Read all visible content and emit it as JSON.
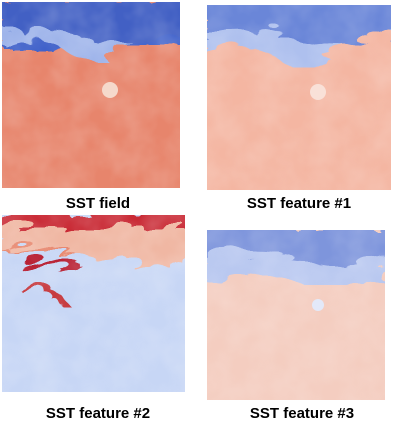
{
  "panels": [
    {
      "caption": "SST field"
    },
    {
      "caption": "SST feature #1"
    },
    {
      "caption": "SST feature #2"
    },
    {
      "caption": "SST feature #3"
    }
  ]
}
